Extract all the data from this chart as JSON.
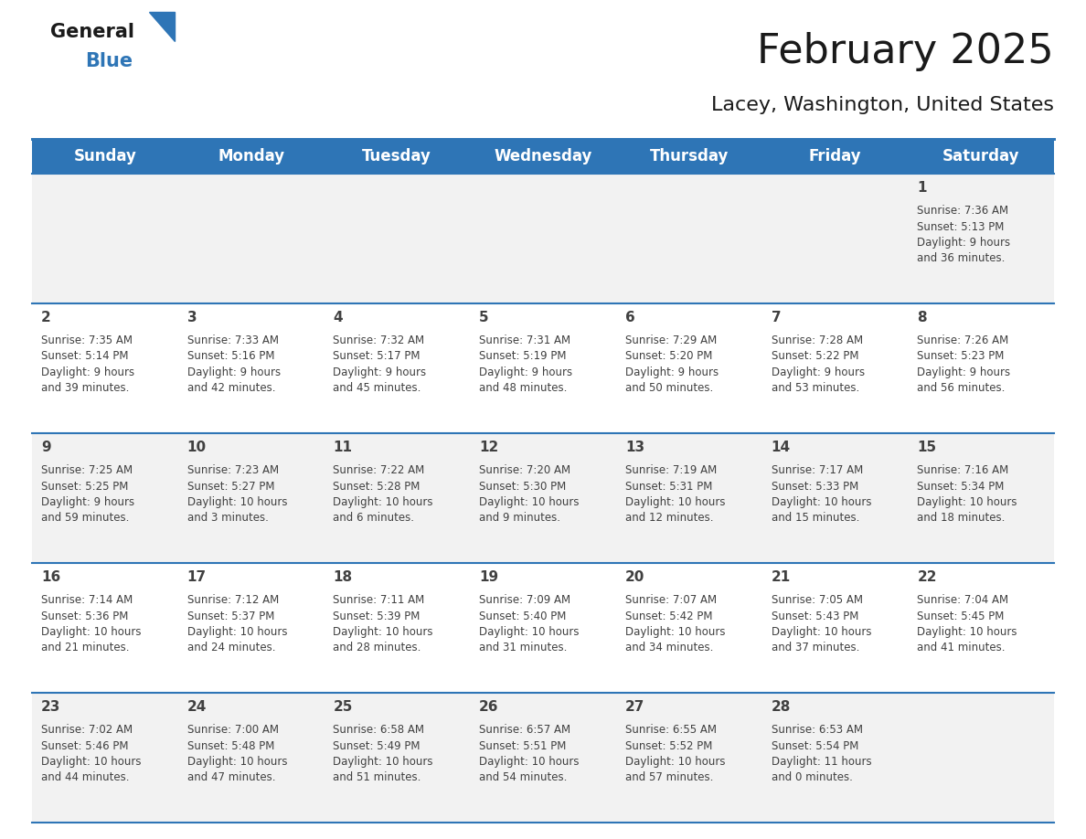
{
  "title": "February 2025",
  "subtitle": "Lacey, Washington, United States",
  "header_color": "#2E75B6",
  "header_text_color": "#FFFFFF",
  "cell_bg_even": "#F2F2F2",
  "cell_bg_odd": "#FFFFFF",
  "border_color": "#2E75B6",
  "text_color": "#404040",
  "days_of_week": [
    "Sunday",
    "Monday",
    "Tuesday",
    "Wednesday",
    "Thursday",
    "Friday",
    "Saturday"
  ],
  "weeks": [
    [
      {
        "day": null
      },
      {
        "day": null
      },
      {
        "day": null
      },
      {
        "day": null
      },
      {
        "day": null
      },
      {
        "day": null
      },
      {
        "day": 1,
        "sunrise": "7:36 AM",
        "sunset": "5:13 PM",
        "daylight_h": "9 hours",
        "daylight_m": "and 36 minutes."
      }
    ],
    [
      {
        "day": 2,
        "sunrise": "7:35 AM",
        "sunset": "5:14 PM",
        "daylight_h": "9 hours",
        "daylight_m": "and 39 minutes."
      },
      {
        "day": 3,
        "sunrise": "7:33 AM",
        "sunset": "5:16 PM",
        "daylight_h": "9 hours",
        "daylight_m": "and 42 minutes."
      },
      {
        "day": 4,
        "sunrise": "7:32 AM",
        "sunset": "5:17 PM",
        "daylight_h": "9 hours",
        "daylight_m": "and 45 minutes."
      },
      {
        "day": 5,
        "sunrise": "7:31 AM",
        "sunset": "5:19 PM",
        "daylight_h": "9 hours",
        "daylight_m": "and 48 minutes."
      },
      {
        "day": 6,
        "sunrise": "7:29 AM",
        "sunset": "5:20 PM",
        "daylight_h": "9 hours",
        "daylight_m": "and 50 minutes."
      },
      {
        "day": 7,
        "sunrise": "7:28 AM",
        "sunset": "5:22 PM",
        "daylight_h": "9 hours",
        "daylight_m": "and 53 minutes."
      },
      {
        "day": 8,
        "sunrise": "7:26 AM",
        "sunset": "5:23 PM",
        "daylight_h": "9 hours",
        "daylight_m": "and 56 minutes."
      }
    ],
    [
      {
        "day": 9,
        "sunrise": "7:25 AM",
        "sunset": "5:25 PM",
        "daylight_h": "9 hours",
        "daylight_m": "and 59 minutes."
      },
      {
        "day": 10,
        "sunrise": "7:23 AM",
        "sunset": "5:27 PM",
        "daylight_h": "10 hours",
        "daylight_m": "and 3 minutes."
      },
      {
        "day": 11,
        "sunrise": "7:22 AM",
        "sunset": "5:28 PM",
        "daylight_h": "10 hours",
        "daylight_m": "and 6 minutes."
      },
      {
        "day": 12,
        "sunrise": "7:20 AM",
        "sunset": "5:30 PM",
        "daylight_h": "10 hours",
        "daylight_m": "and 9 minutes."
      },
      {
        "day": 13,
        "sunrise": "7:19 AM",
        "sunset": "5:31 PM",
        "daylight_h": "10 hours",
        "daylight_m": "and 12 minutes."
      },
      {
        "day": 14,
        "sunrise": "7:17 AM",
        "sunset": "5:33 PM",
        "daylight_h": "10 hours",
        "daylight_m": "and 15 minutes."
      },
      {
        "day": 15,
        "sunrise": "7:16 AM",
        "sunset": "5:34 PM",
        "daylight_h": "10 hours",
        "daylight_m": "and 18 minutes."
      }
    ],
    [
      {
        "day": 16,
        "sunrise": "7:14 AM",
        "sunset": "5:36 PM",
        "daylight_h": "10 hours",
        "daylight_m": "and 21 minutes."
      },
      {
        "day": 17,
        "sunrise": "7:12 AM",
        "sunset": "5:37 PM",
        "daylight_h": "10 hours",
        "daylight_m": "and 24 minutes."
      },
      {
        "day": 18,
        "sunrise": "7:11 AM",
        "sunset": "5:39 PM",
        "daylight_h": "10 hours",
        "daylight_m": "and 28 minutes."
      },
      {
        "day": 19,
        "sunrise": "7:09 AM",
        "sunset": "5:40 PM",
        "daylight_h": "10 hours",
        "daylight_m": "and 31 minutes."
      },
      {
        "day": 20,
        "sunrise": "7:07 AM",
        "sunset": "5:42 PM",
        "daylight_h": "10 hours",
        "daylight_m": "and 34 minutes."
      },
      {
        "day": 21,
        "sunrise": "7:05 AM",
        "sunset": "5:43 PM",
        "daylight_h": "10 hours",
        "daylight_m": "and 37 minutes."
      },
      {
        "day": 22,
        "sunrise": "7:04 AM",
        "sunset": "5:45 PM",
        "daylight_h": "10 hours",
        "daylight_m": "and 41 minutes."
      }
    ],
    [
      {
        "day": 23,
        "sunrise": "7:02 AM",
        "sunset": "5:46 PM",
        "daylight_h": "10 hours",
        "daylight_m": "and 44 minutes."
      },
      {
        "day": 24,
        "sunrise": "7:00 AM",
        "sunset": "5:48 PM",
        "daylight_h": "10 hours",
        "daylight_m": "and 47 minutes."
      },
      {
        "day": 25,
        "sunrise": "6:58 AM",
        "sunset": "5:49 PM",
        "daylight_h": "10 hours",
        "daylight_m": "and 51 minutes."
      },
      {
        "day": 26,
        "sunrise": "6:57 AM",
        "sunset": "5:51 PM",
        "daylight_h": "10 hours",
        "daylight_m": "and 54 minutes."
      },
      {
        "day": 27,
        "sunrise": "6:55 AM",
        "sunset": "5:52 PM",
        "daylight_h": "10 hours",
        "daylight_m": "and 57 minutes."
      },
      {
        "day": 28,
        "sunrise": "6:53 AM",
        "sunset": "5:54 PM",
        "daylight_h": "11 hours",
        "daylight_m": "and 0 minutes."
      },
      {
        "day": null
      }
    ]
  ],
  "title_fontsize": 32,
  "subtitle_fontsize": 16,
  "header_fontsize": 12,
  "day_num_fontsize": 11,
  "cell_text_fontsize": 8.5,
  "logo_general_fontsize": 15,
  "logo_blue_fontsize": 15
}
